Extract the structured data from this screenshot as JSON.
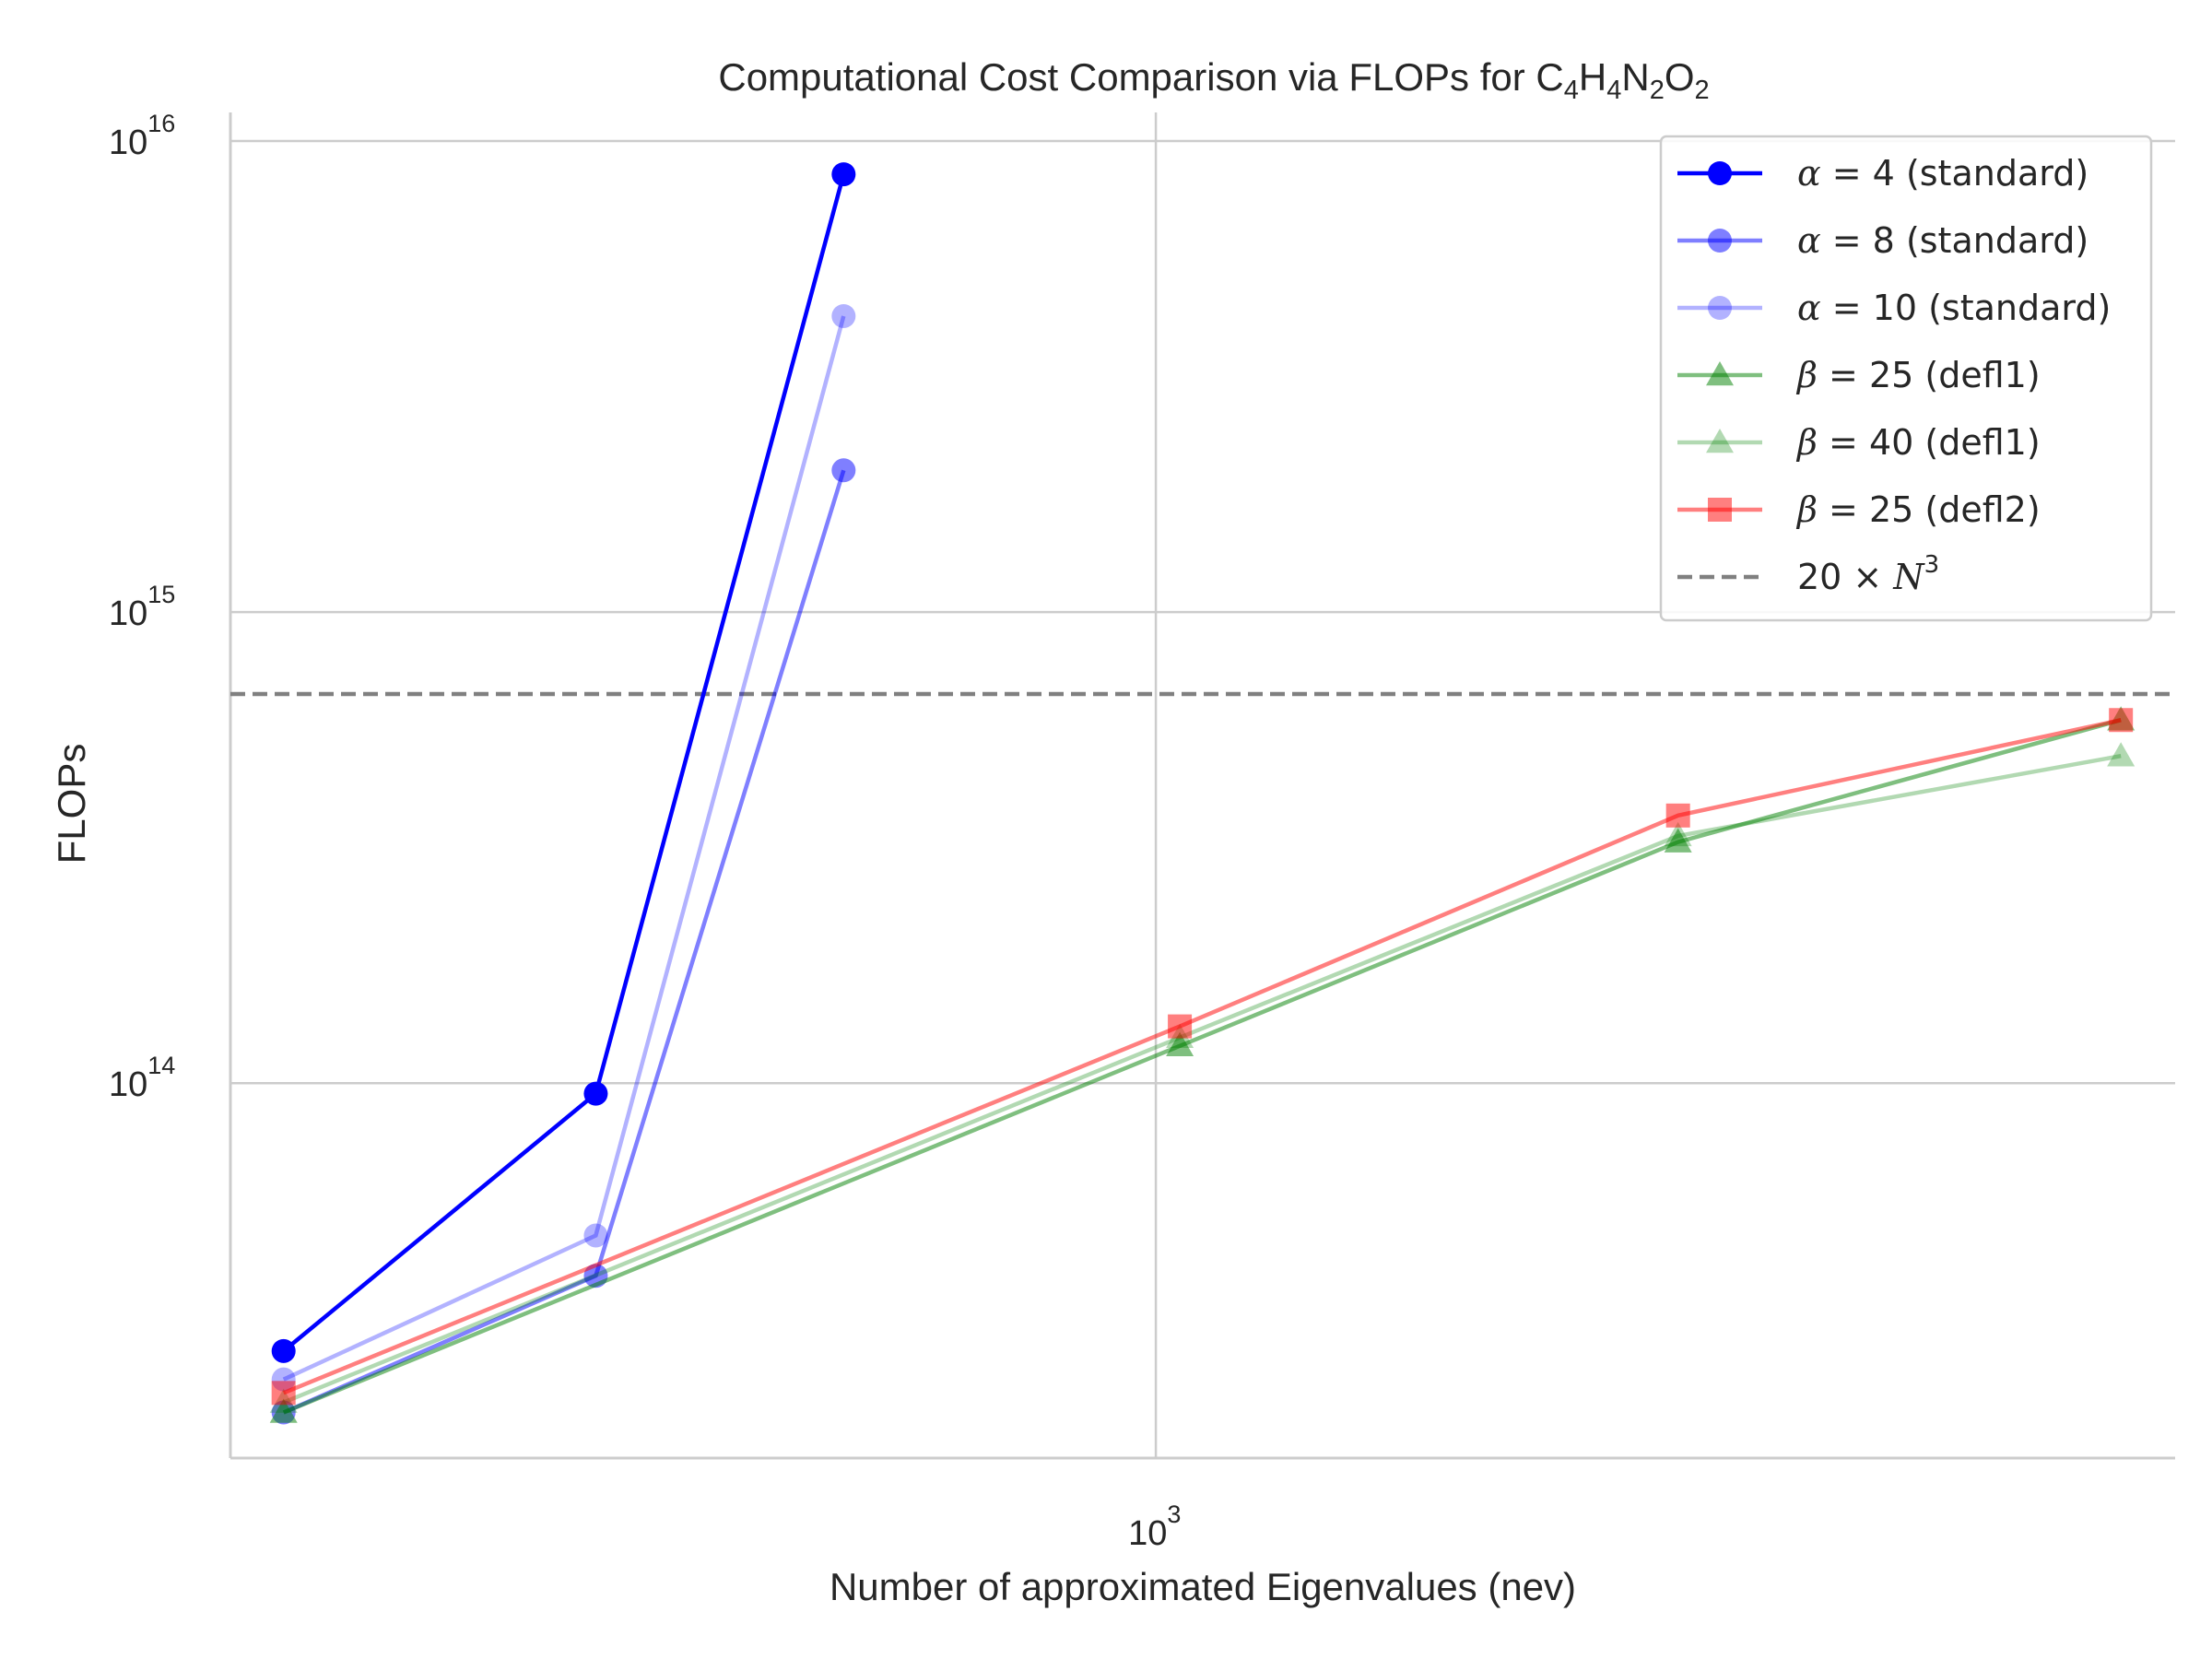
{
  "chart_data": {
    "type": "line",
    "title": "Computational Cost Comparison via FLOPs for C4H4N2O2",
    "title_parts": [
      "Computational Cost Comparison via FLOPs for C",
      "4",
      "H",
      "4",
      "N",
      "2",
      "O",
      "2"
    ],
    "xlabel": "Number of approximated Eigenvalues (nev)",
    "ylabel": "FLOPs",
    "x_scale": "log",
    "y_scale": "log",
    "xlim": [
      220,
      5300
    ],
    "ylim": [
      16000000000000.0,
      1.15e+16
    ],
    "x_ticks": [
      {
        "base": "10",
        "exp": "3",
        "value": 1000
      }
    ],
    "y_ticks": [
      {
        "base": "10",
        "exp": "14",
        "value": 100000000000000.0
      },
      {
        "base": "10",
        "exp": "15",
        "value": 1000000000000000.0
      },
      {
        "base": "10",
        "exp": "16",
        "value": 1e+16
      }
    ],
    "grid": true,
    "legend_position": "top-right",
    "reference_line": {
      "name": "20 × N³",
      "label_main": "20 × N",
      "label_sup": "3",
      "value": 670000000000000.0,
      "color": "#808080",
      "style": "dashed"
    },
    "series": [
      {
        "name": "α = 4 (standard)",
        "sym": "α",
        "eq": " = 4",
        "desc": " (standard)",
        "color": "#0000ff",
        "opacity": 1.0,
        "marker": "circle",
        "x": [
          240,
          400,
          600
        ],
        "y": [
          27000000000000.0,
          95000000000000.0,
          8500000000000000.0
        ]
      },
      {
        "name": "α = 8 (standard)",
        "sym": "α",
        "eq": " = 8",
        "desc": " (standard)",
        "color": "#0000ff",
        "opacity": 0.5,
        "marker": "circle",
        "x": [
          240,
          400,
          600
        ],
        "y": [
          20000000000000.0,
          39000000000000.0,
          2000000000000000.0
        ]
      },
      {
        "name": "α = 10 (standard)",
        "sym": "α",
        "eq": " = 10",
        "desc": " (standard)",
        "color": "#0000ff",
        "opacity": 0.3,
        "marker": "circle",
        "x": [
          240,
          400,
          600
        ],
        "y": [
          23500000000000.0,
          47500000000000.0,
          4250000000000000.0
        ]
      },
      {
        "name": "β = 25 (defl1)",
        "sym": "β",
        "eq": " = 25",
        "desc": " (defl1)",
        "color": "#008000",
        "opacity": 0.5,
        "marker": "triangle",
        "x": [
          240,
          1040,
          2350,
          4850
        ],
        "y": [
          20000000000000.0,
          120000000000000.0,
          325000000000000.0,
          590000000000000.0
        ]
      },
      {
        "name": "β = 40 (defl1)",
        "sym": "β",
        "eq": " = 40",
        "desc": " (defl1)",
        "color": "#008000",
        "opacity": 0.3,
        "marker": "triangle",
        "x": [
          240,
          1040,
          2350,
          4850
        ],
        "y": [
          21000000000000.0,
          125000000000000.0,
          335000000000000.0,
          495000000000000.0
        ]
      },
      {
        "name": "β = 25 (defl2)",
        "sym": "β",
        "eq": " = 25",
        "desc": " (defl2)",
        "color": "#ff0000",
        "opacity": 0.5,
        "marker": "square",
        "x": [
          240,
          1040,
          2350,
          4850
        ],
        "y": [
          22000000000000.0,
          132000000000000.0,
          370000000000000.0,
          590000000000000.0
        ]
      }
    ]
  }
}
